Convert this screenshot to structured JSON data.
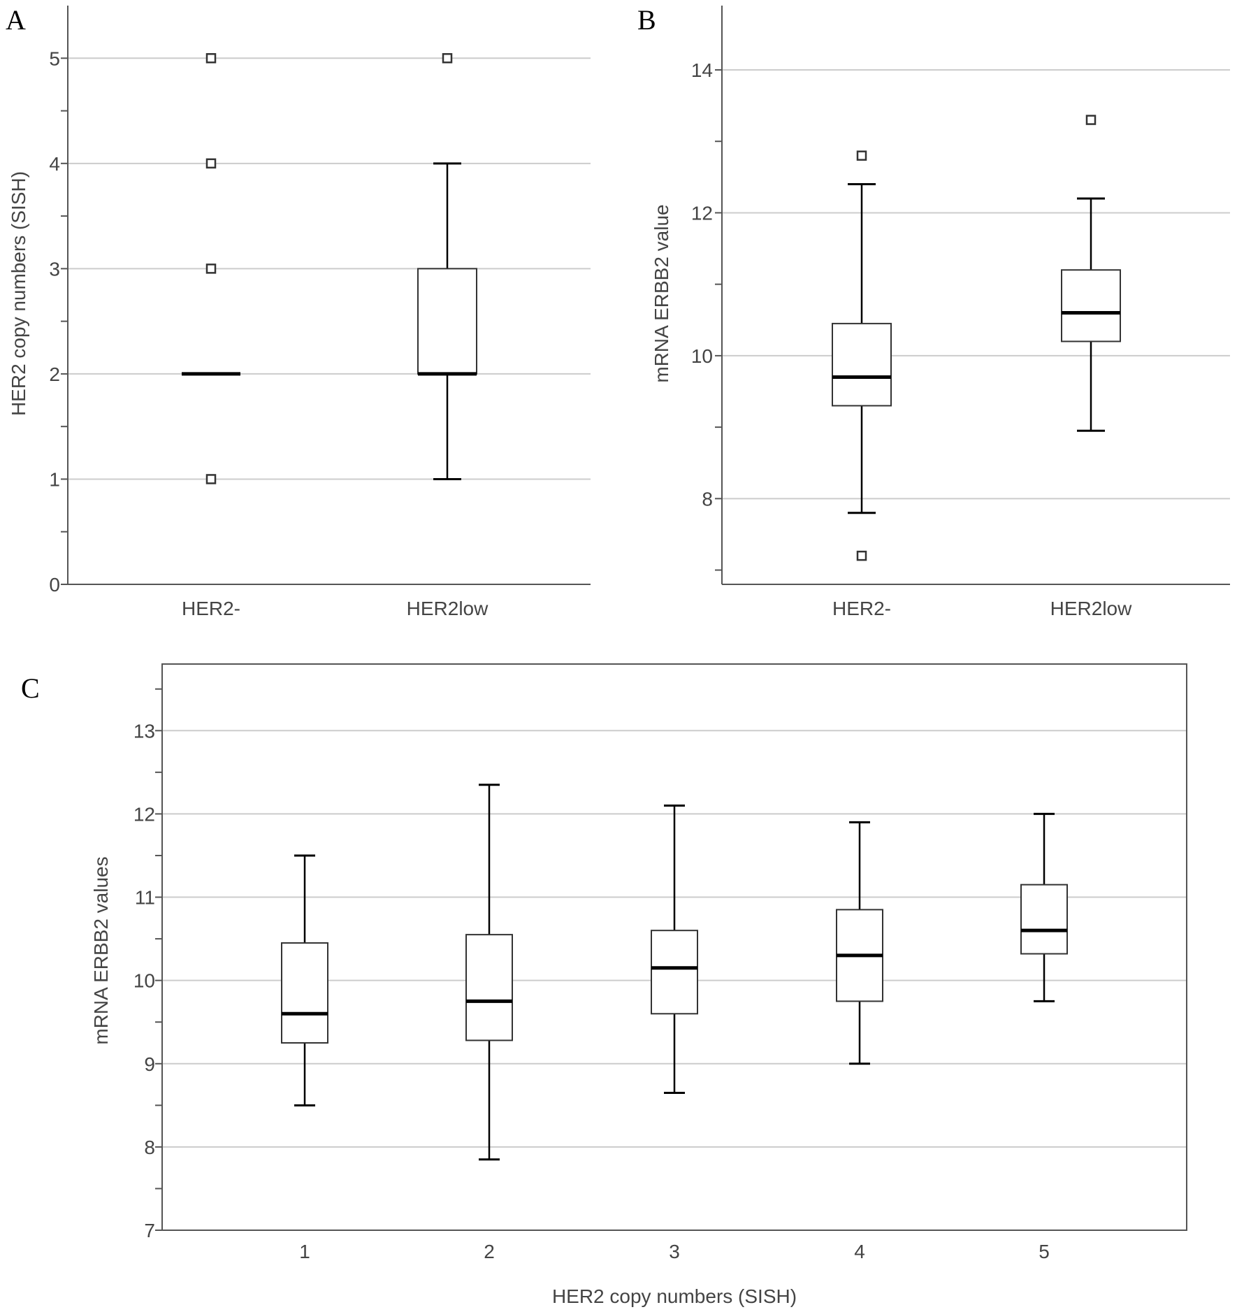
{
  "chart_data": [
    {
      "panel": "A",
      "type": "box",
      "ylabel": "HER2 copy numbers (SISH)",
      "xlabel": "",
      "ylim": [
        0,
        5.5
      ],
      "yticks": [
        0,
        1,
        2,
        3,
        4,
        5
      ],
      "yminor": [
        0.5,
        1.5,
        2.5,
        3.5,
        4.5
      ],
      "ygrid": [
        1,
        2,
        3,
        4,
        5
      ],
      "grid": true,
      "categories": [
        "HER2-",
        "HER2low"
      ],
      "boxes": [
        {
          "category": "HER2-",
          "min": 2,
          "q1": 2,
          "median": 2,
          "q3": 2,
          "max": 2,
          "outliers": [
            1,
            3,
            4,
            5
          ]
        },
        {
          "category": "HER2low",
          "min": 1,
          "q1": 2,
          "median": 2,
          "q3": 3,
          "max": 4,
          "outliers": [
            5
          ]
        }
      ]
    },
    {
      "panel": "B",
      "type": "box",
      "ylabel": "mRNA ERBB2 value",
      "xlabel": "",
      "ylim": [
        6.8,
        14.9
      ],
      "yticks": [
        8,
        10,
        12,
        14
      ],
      "yminor": [
        7,
        9,
        11,
        13
      ],
      "ygrid": [
        8,
        10,
        12,
        14
      ],
      "grid": true,
      "categories": [
        "HER2-",
        "HER2low"
      ],
      "boxes": [
        {
          "category": "HER2-",
          "min": 7.8,
          "q1": 9.3,
          "median": 9.7,
          "q3": 10.45,
          "max": 12.4,
          "outliers": [
            7.2,
            12.8
          ]
        },
        {
          "category": "HER2low",
          "min": 8.95,
          "q1": 10.2,
          "median": 10.6,
          "q3": 11.2,
          "max": 12.2,
          "outliers": [
            13.3
          ]
        }
      ]
    },
    {
      "panel": "C",
      "type": "box",
      "ylabel": "mRNA ERBB2 values",
      "xlabel": "HER2 copy numbers (SISH)",
      "ylim": [
        7,
        13.8
      ],
      "yticks": [
        7,
        8,
        9,
        10,
        11,
        12,
        13
      ],
      "yminor": [
        7.5,
        8.5,
        9.5,
        10.5,
        11.5,
        12.5,
        13.5
      ],
      "ygrid": [
        8,
        9,
        10,
        11,
        12,
        13
      ],
      "grid": true,
      "categories": [
        "1",
        "2",
        "3",
        "4",
        "5"
      ],
      "boxes": [
        {
          "category": "1",
          "min": 8.5,
          "q1": 9.25,
          "median": 9.6,
          "q3": 10.45,
          "max": 11.5,
          "outliers": []
        },
        {
          "category": "2",
          "min": 7.85,
          "q1": 9.28,
          "median": 9.75,
          "q3": 10.55,
          "max": 12.35,
          "outliers": []
        },
        {
          "category": "3",
          "min": 8.65,
          "q1": 9.6,
          "median": 10.15,
          "q3": 10.6,
          "max": 12.1,
          "outliers": []
        },
        {
          "category": "4",
          "min": 9.0,
          "q1": 9.75,
          "median": 10.3,
          "q3": 10.85,
          "max": 11.9,
          "outliers": []
        },
        {
          "category": "5",
          "min": 9.75,
          "q1": 10.32,
          "median": 10.6,
          "q3": 11.15,
          "max": 12.0,
          "outliers": []
        }
      ]
    }
  ]
}
